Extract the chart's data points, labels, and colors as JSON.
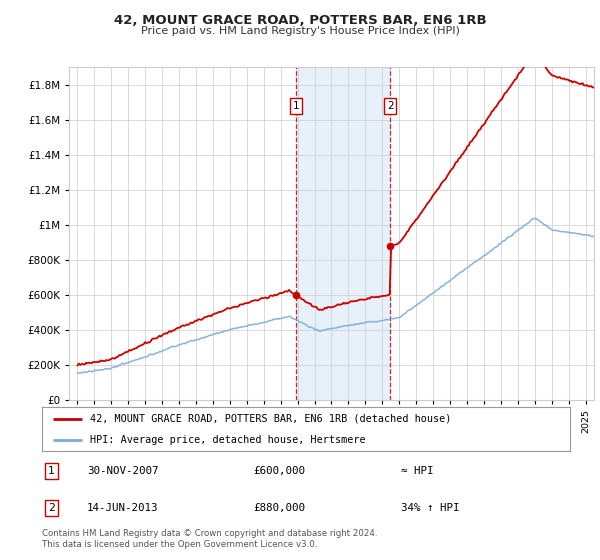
{
  "title": "42, MOUNT GRACE ROAD, POTTERS BAR, EN6 1RB",
  "subtitle": "Price paid vs. HM Land Registry's House Price Index (HPI)",
  "ylabel_ticks": [
    "£0",
    "£200K",
    "£400K",
    "£600K",
    "£800K",
    "£1M",
    "£1.2M",
    "£1.4M",
    "£1.6M",
    "£1.8M"
  ],
  "ytick_values": [
    0,
    200000,
    400000,
    600000,
    800000,
    1000000,
    1200000,
    1400000,
    1600000,
    1800000
  ],
  "ylim": [
    0,
    1900000
  ],
  "xlim_start": 1994.5,
  "xlim_end": 2025.5,
  "sale1_x": 2007.917,
  "sale1_y": 600000,
  "sale2_x": 2013.458,
  "sale2_y": 880000,
  "shade_color": "#d0e4f7",
  "shade_alpha": 0.5,
  "dashed_color": "#cc0000",
  "hpi_color": "#7aadd4",
  "price_color": "#cc0000",
  "legend_label1": "42, MOUNT GRACE ROAD, POTTERS BAR, EN6 1RB (detached house)",
  "legend_label2": "HPI: Average price, detached house, Hertsmere",
  "annotation1_label": "1",
  "annotation1_date": "30-NOV-2007",
  "annotation1_price": "£600,000",
  "annotation1_hpi": "≈ HPI",
  "annotation2_label": "2",
  "annotation2_date": "14-JUN-2013",
  "annotation2_price": "£880,000",
  "annotation2_hpi": "34% ↑ HPI",
  "footer": "Contains HM Land Registry data © Crown copyright and database right 2024.\nThis data is licensed under the Open Government Licence v3.0.",
  "grid_color": "#cccccc",
  "bg_color": "#ffffff"
}
